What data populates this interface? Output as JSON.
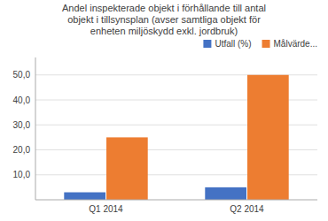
{
  "chart_data": {
    "type": "bar",
    "title": "Andel inspekterade objekt i förhållande till antal\nobjekt i tillsynsplan (avser samtliga objekt för\nenheten miljöskydd exkl. jordbruk)",
    "categories": [
      "Q1 2014",
      "Q2 2014"
    ],
    "series": [
      {
        "name": "Utfall (%)",
        "color": "#4472C4",
        "values": [
          3.0,
          5.0
        ]
      },
      {
        "name": "Målvärde...",
        "color": "#ED7D31",
        "values": [
          25.0,
          50.0
        ]
      }
    ],
    "ylim": [
      0,
      57
    ],
    "yticks": [
      {
        "value": 10.0,
        "label": "10,0"
      },
      {
        "value": 20.0,
        "label": "20,0"
      },
      {
        "value": 30.0,
        "label": "30,0"
      },
      {
        "value": 40.0,
        "label": "40,0"
      },
      {
        "value": 50.0,
        "label": "50,0"
      }
    ],
    "grid": true,
    "legend": "upper right"
  }
}
